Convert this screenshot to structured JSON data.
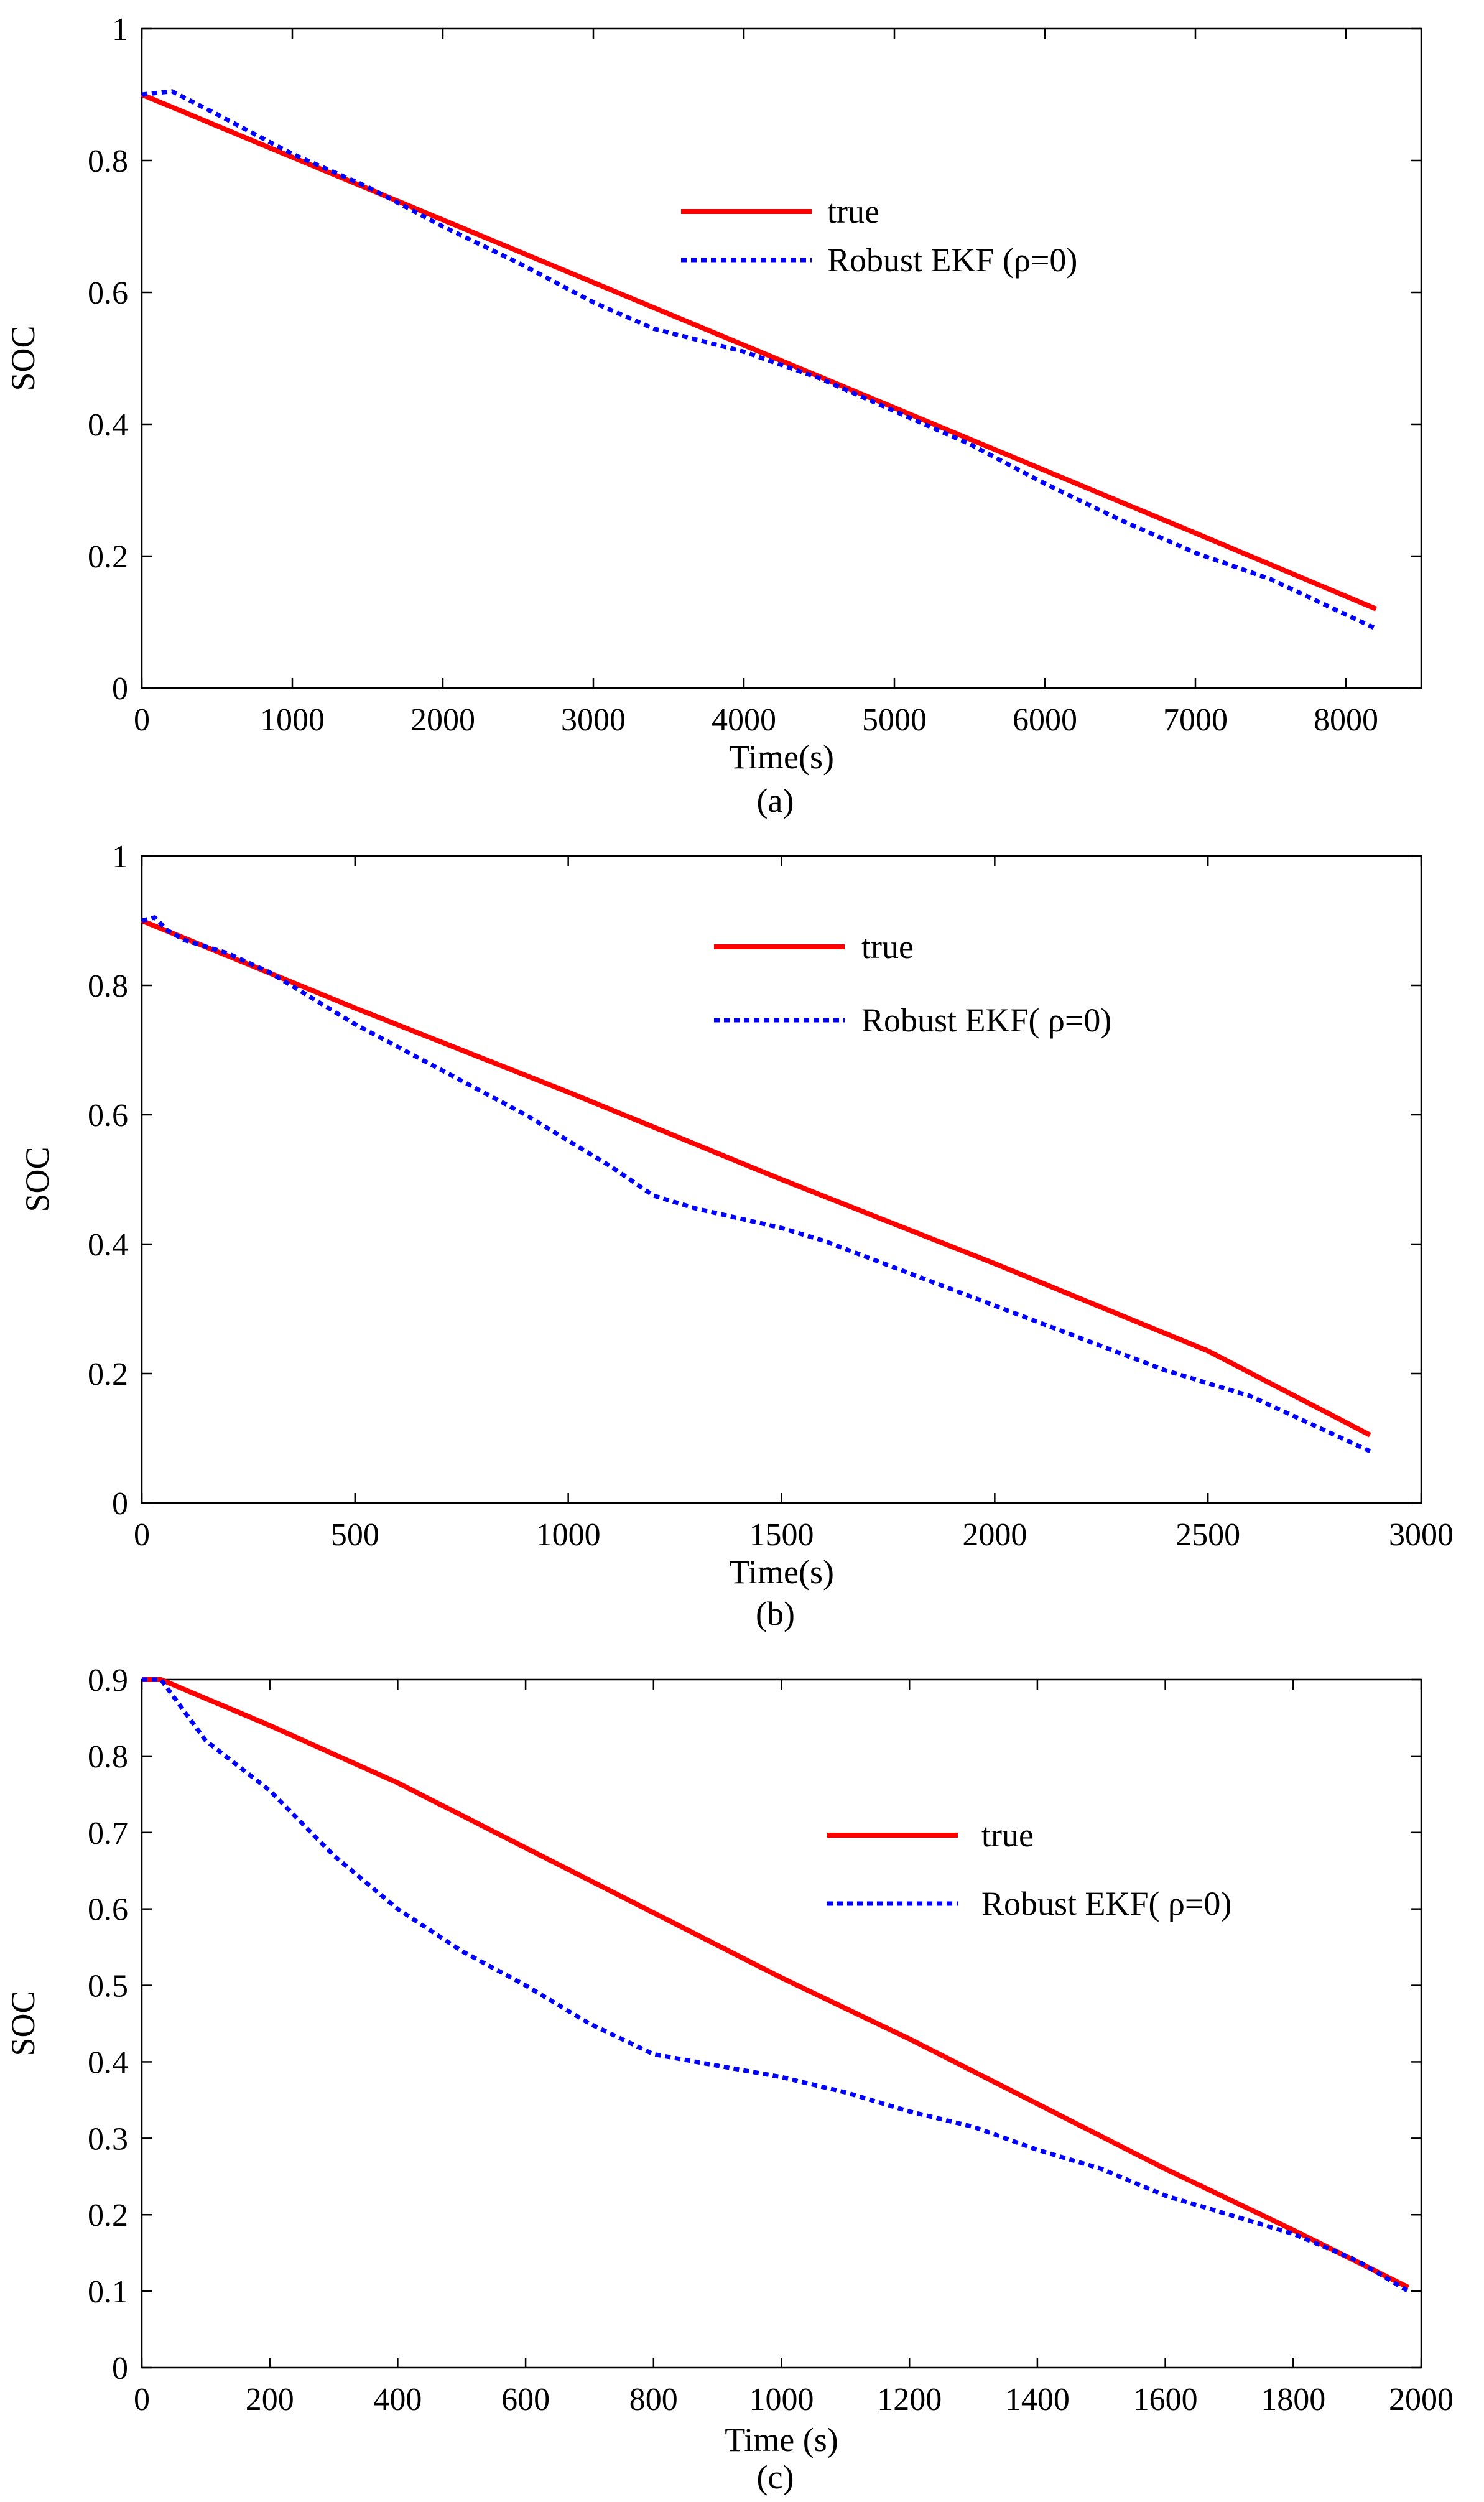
{
  "chart_data": [
    {
      "type": "line",
      "caption": "(a)",
      "xlabel": "Time(s)",
      "ylabel": "SOC",
      "xlim": [
        0,
        8500
      ],
      "ylim": [
        0,
        1
      ],
      "xticks": [
        0,
        1000,
        2000,
        3000,
        4000,
        5000,
        6000,
        7000,
        8000
      ],
      "yticks": [
        0,
        0.2,
        0.4,
        0.6,
        0.8,
        1
      ],
      "xtick_labels": [
        "0",
        "1000",
        "2000",
        "3000",
        "4000",
        "5000",
        "6000",
        "7000",
        "8000"
      ],
      "ytick_labels": [
        "0",
        "0.2",
        "0.4",
        "0.6",
        "0.8",
        "1"
      ],
      "grid": false,
      "legend_position": "upper-right-center",
      "series": [
        {
          "name": "true",
          "color": "#ff0000",
          "style": "solid",
          "x": [
            0,
            1000,
            2000,
            3000,
            4000,
            5000,
            6000,
            7000,
            8200
          ],
          "y": [
            0.9,
            0.805,
            0.71,
            0.615,
            0.52,
            0.425,
            0.33,
            0.235,
            0.12
          ]
        },
        {
          "name": "Robust EKF (ρ=0)",
          "color": "#0000ff",
          "style": "dotted",
          "x": [
            0,
            200,
            500,
            1000,
            1500,
            2000,
            2500,
            3000,
            3400,
            4000,
            4500,
            5000,
            5500,
            6000,
            6500,
            7000,
            7500,
            8200
          ],
          "y": [
            0.9,
            0.905,
            0.87,
            0.81,
            0.76,
            0.7,
            0.645,
            0.585,
            0.545,
            0.51,
            0.47,
            0.42,
            0.37,
            0.31,
            0.255,
            0.205,
            0.165,
            0.09
          ]
        }
      ]
    },
    {
      "type": "line",
      "caption": "(b)",
      "xlabel": "Time(s)",
      "ylabel": "SOC",
      "xlim": [
        0,
        3000
      ],
      "ylim": [
        0,
        1
      ],
      "xticks": [
        0,
        500,
        1000,
        1500,
        2000,
        2500,
        3000
      ],
      "yticks": [
        0,
        0.2,
        0.4,
        0.6,
        0.8,
        1
      ],
      "xtick_labels": [
        "0",
        "500",
        "1000",
        "1500",
        "2000",
        "2500",
        "3000"
      ],
      "ytick_labels": [
        "0",
        "0.2",
        "0.4",
        "0.6",
        "0.8",
        "1"
      ],
      "grid": false,
      "legend_position": "upper-right-center",
      "series": [
        {
          "name": "true",
          "color": "#ff0000",
          "style": "solid",
          "x": [
            0,
            500,
            1000,
            1500,
            2000,
            2500,
            2880
          ],
          "y": [
            0.9,
            0.765,
            0.635,
            0.5,
            0.37,
            0.235,
            0.105
          ]
        },
        {
          "name": "Robust EKF( ρ=0)",
          "color": "#0000ff",
          "style": "dotted",
          "x": [
            0,
            30,
            60,
            100,
            200,
            300,
            400,
            500,
            600,
            700,
            800,
            900,
            1000,
            1100,
            1200,
            1300,
            1400,
            1500,
            1600,
            1800,
            2000,
            2200,
            2400,
            2600,
            2880
          ],
          "y": [
            0.9,
            0.905,
            0.885,
            0.87,
            0.85,
            0.82,
            0.78,
            0.74,
            0.705,
            0.67,
            0.635,
            0.6,
            0.56,
            0.52,
            0.475,
            0.455,
            0.44,
            0.425,
            0.405,
            0.355,
            0.305,
            0.255,
            0.205,
            0.165,
            0.08
          ]
        }
      ]
    },
    {
      "type": "line",
      "caption": "(c)",
      "xlabel": "Time (s)",
      "ylabel": "SOC",
      "xlim": [
        0,
        2000
      ],
      "ylim": [
        0,
        0.9
      ],
      "xticks": [
        0,
        200,
        400,
        600,
        800,
        1000,
        1200,
        1400,
        1600,
        1800,
        2000
      ],
      "yticks": [
        0,
        0.1,
        0.2,
        0.3,
        0.4,
        0.5,
        0.6,
        0.7,
        0.8,
        0.9
      ],
      "xtick_labels": [
        "0",
        "200",
        "400",
        "600",
        "800",
        "1000",
        "1200",
        "1400",
        "1600",
        "1800",
        "2000"
      ],
      "ytick_labels": [
        "0",
        "0.1",
        "0.2",
        "0.3",
        "0.4",
        "0.5",
        "0.6",
        "0.7",
        "0.8",
        "0.9"
      ],
      "grid": false,
      "legend_position": "upper-right-center",
      "series": [
        {
          "name": "true",
          "color": "#ff0000",
          "style": "solid",
          "x": [
            0,
            30,
            200,
            400,
            600,
            800,
            1000,
            1200,
            1400,
            1600,
            1800,
            1980
          ],
          "y": [
            0.9,
            0.9,
            0.84,
            0.765,
            0.68,
            0.595,
            0.51,
            0.43,
            0.345,
            0.26,
            0.18,
            0.105
          ]
        },
        {
          "name": "Robust EKF( ρ=0)",
          "color": "#0000ff",
          "style": "dotted",
          "x": [
            0,
            30,
            100,
            200,
            300,
            400,
            500,
            600,
            700,
            750,
            800,
            900,
            1000,
            1100,
            1200,
            1300,
            1400,
            1500,
            1600,
            1700,
            1800,
            1900,
            1980
          ],
          "y": [
            0.9,
            0.9,
            0.82,
            0.755,
            0.67,
            0.6,
            0.545,
            0.5,
            0.45,
            0.43,
            0.41,
            0.395,
            0.38,
            0.36,
            0.335,
            0.315,
            0.285,
            0.26,
            0.225,
            0.2,
            0.175,
            0.14,
            0.1
          ]
        }
      ]
    }
  ]
}
